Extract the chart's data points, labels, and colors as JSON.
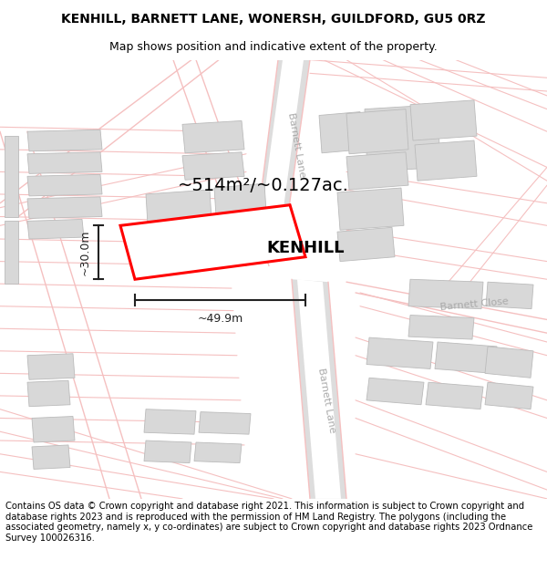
{
  "title": "KENHILL, BARNETT LANE, WONERSH, GUILDFORD, GU5 0RZ",
  "subtitle": "Map shows position and indicative extent of the property.",
  "footer": "Contains OS data © Crown copyright and database right 2021. This information is subject to Crown copyright and database rights 2023 and is reproduced with the permission of HM Land Registry. The polygons (including the associated geometry, namely x, y co-ordinates) are subject to Crown copyright and database rights 2023 Ordnance Survey 100026316.",
  "area_label": "~514m²/~0.127ac.",
  "width_label": "~49.9m",
  "height_label": "~30.0m",
  "property_name": "KENHILL",
  "map_bg": "#ffffff",
  "plot_color": "#ff0000",
  "road_color": "#f5c0c0",
  "road_fill": "#ffffff",
  "building_color": "#d8d8d8",
  "building_edge": "#bbbbbb",
  "barnett_lane_color": "#dddddd",
  "title_fontsize": 10,
  "subtitle_fontsize": 9,
  "footer_fontsize": 7.2,
  "label_color": "#cccccc",
  "dim_color": "#222222"
}
